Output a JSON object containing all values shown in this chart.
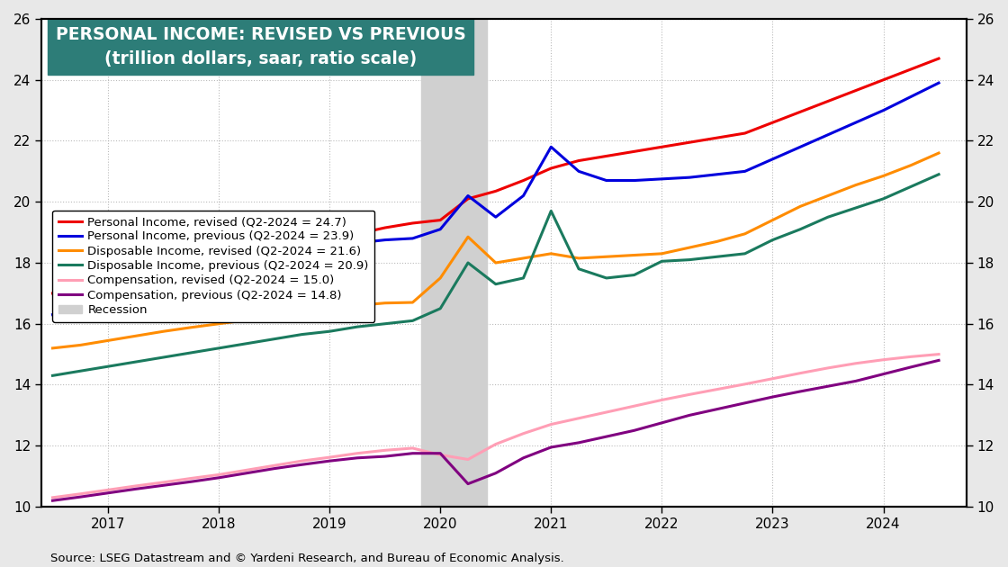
{
  "title_line1": "PERSONAL INCOME: REVISED VS PREVIOUS",
  "title_line2": "(trillion dollars, saar, ratio scale)",
  "title_bg_color": "#2d7d78",
  "title_text_color": "#ffffff",
  "source_text": "Source: LSEG Datastream and © Yardeni Research, and Bureau of Economic Analysis.",
  "ylim": [
    10,
    26
  ],
  "yticks": [
    10,
    12,
    14,
    16,
    18,
    20,
    22,
    24,
    26
  ],
  "xlim": [
    2016.4,
    2024.75
  ],
  "xticks": [
    2017,
    2018,
    2019,
    2020,
    2021,
    2022,
    2023,
    2024
  ],
  "recession_start": 2019.83,
  "recession_end": 2020.42,
  "background_color": "#e8e8e8",
  "plot_bg_color": "#ffffff",
  "grid_color": "#aaaaaa",
  "series": {
    "pi_revised": {
      "label": "Personal Income, revised (Q2-2024 = 24.7)",
      "color": "#ee0000",
      "lw": 2.2,
      "x": [
        2016.5,
        2016.75,
        2017.0,
        2017.25,
        2017.5,
        2017.75,
        2018.0,
        2018.25,
        2018.5,
        2018.75,
        2019.0,
        2019.25,
        2019.5,
        2019.75,
        2020.0,
        2020.25,
        2020.5,
        2020.75,
        2021.0,
        2021.25,
        2021.5,
        2021.75,
        2022.0,
        2022.25,
        2022.5,
        2022.75,
        2023.0,
        2023.25,
        2023.5,
        2023.75,
        2024.0,
        2024.25,
        2024.5
      ],
      "y": [
        17.0,
        17.15,
        17.3,
        17.5,
        17.65,
        17.8,
        17.95,
        18.15,
        18.35,
        18.55,
        18.75,
        18.95,
        19.15,
        19.3,
        19.4,
        20.1,
        20.35,
        20.7,
        21.1,
        21.35,
        21.5,
        21.65,
        21.8,
        21.95,
        22.1,
        22.25,
        22.6,
        22.95,
        23.3,
        23.65,
        24.0,
        24.35,
        24.7
      ]
    },
    "pi_previous": {
      "label": "Personal Income, previous (Q2-2024 = 23.9)",
      "color": "#0000dd",
      "lw": 2.2,
      "x": [
        2016.5,
        2016.75,
        2017.0,
        2017.25,
        2017.5,
        2017.75,
        2018.0,
        2018.25,
        2018.5,
        2018.75,
        2019.0,
        2019.25,
        2019.5,
        2019.75,
        2020.0,
        2020.25,
        2020.5,
        2020.75,
        2021.0,
        2021.25,
        2021.5,
        2021.75,
        2022.0,
        2022.25,
        2022.5,
        2022.75,
        2023.0,
        2023.25,
        2023.5,
        2023.75,
        2024.0,
        2024.25,
        2024.5
      ],
      "y": [
        16.3,
        16.5,
        16.7,
        16.9,
        17.1,
        17.35,
        17.6,
        17.85,
        18.1,
        18.3,
        18.5,
        18.65,
        18.75,
        18.8,
        19.1,
        20.2,
        19.5,
        20.2,
        21.8,
        21.0,
        20.7,
        20.7,
        20.75,
        20.8,
        20.9,
        21.0,
        21.4,
        21.8,
        22.2,
        22.6,
        23.0,
        23.45,
        23.9
      ]
    },
    "di_revised": {
      "label": "Disposable Income, revised (Q2-2024 = 21.6)",
      "color": "#ff8c00",
      "lw": 2.2,
      "x": [
        2016.5,
        2016.75,
        2017.0,
        2017.25,
        2017.5,
        2017.75,
        2018.0,
        2018.25,
        2018.5,
        2018.75,
        2019.0,
        2019.25,
        2019.5,
        2019.75,
        2020.0,
        2020.25,
        2020.5,
        2020.75,
        2021.0,
        2021.25,
        2021.5,
        2021.75,
        2022.0,
        2022.25,
        2022.5,
        2022.75,
        2023.0,
        2023.25,
        2023.5,
        2023.75,
        2024.0,
        2024.25,
        2024.5
      ],
      "y": [
        15.2,
        15.3,
        15.45,
        15.6,
        15.75,
        15.88,
        16.0,
        16.12,
        16.25,
        16.38,
        16.5,
        16.6,
        16.68,
        16.7,
        17.5,
        18.85,
        18.0,
        18.15,
        18.3,
        18.15,
        18.2,
        18.25,
        18.3,
        18.5,
        18.7,
        18.95,
        19.4,
        19.85,
        20.2,
        20.55,
        20.85,
        21.2,
        21.6
      ]
    },
    "di_previous": {
      "label": "Disposable Income, previous (Q2-2024 = 20.9)",
      "color": "#1a7a5e",
      "lw": 2.2,
      "x": [
        2016.5,
        2016.75,
        2017.0,
        2017.25,
        2017.5,
        2017.75,
        2018.0,
        2018.25,
        2018.5,
        2018.75,
        2019.0,
        2019.25,
        2019.5,
        2019.75,
        2020.0,
        2020.25,
        2020.5,
        2020.75,
        2021.0,
        2021.25,
        2021.5,
        2021.75,
        2022.0,
        2022.25,
        2022.5,
        2022.75,
        2023.0,
        2023.25,
        2023.5,
        2023.75,
        2024.0,
        2024.25,
        2024.5
      ],
      "y": [
        14.3,
        14.45,
        14.6,
        14.75,
        14.9,
        15.05,
        15.2,
        15.35,
        15.5,
        15.65,
        15.75,
        15.9,
        16.0,
        16.1,
        16.5,
        18.0,
        17.3,
        17.5,
        19.7,
        17.8,
        17.5,
        17.6,
        18.05,
        18.1,
        18.2,
        18.3,
        18.75,
        19.1,
        19.5,
        19.8,
        20.1,
        20.5,
        20.9
      ]
    },
    "comp_revised": {
      "label": "Compensation, revised (Q2-2024 = 15.0)",
      "color": "#ff9eb5",
      "lw": 2.2,
      "x": [
        2016.5,
        2016.75,
        2017.0,
        2017.25,
        2017.5,
        2017.75,
        2018.0,
        2018.25,
        2018.5,
        2018.75,
        2019.0,
        2019.25,
        2019.5,
        2019.75,
        2020.0,
        2020.25,
        2020.5,
        2020.75,
        2021.0,
        2021.25,
        2021.5,
        2021.75,
        2022.0,
        2022.25,
        2022.5,
        2022.75,
        2023.0,
        2023.25,
        2023.5,
        2023.75,
        2024.0,
        2024.25,
        2024.5
      ],
      "y": [
        10.3,
        10.42,
        10.55,
        10.68,
        10.8,
        10.93,
        11.05,
        11.2,
        11.35,
        11.5,
        11.62,
        11.75,
        11.85,
        11.92,
        11.7,
        11.55,
        12.05,
        12.4,
        12.7,
        12.9,
        13.1,
        13.3,
        13.5,
        13.68,
        13.85,
        14.02,
        14.2,
        14.38,
        14.55,
        14.7,
        14.82,
        14.92,
        15.0
      ]
    },
    "comp_previous": {
      "label": "Compensation, previous (Q2-2024 = 14.8)",
      "color": "#800080",
      "lw": 2.2,
      "x": [
        2016.5,
        2016.75,
        2017.0,
        2017.25,
        2017.5,
        2017.75,
        2018.0,
        2018.25,
        2018.5,
        2018.75,
        2019.0,
        2019.25,
        2019.5,
        2019.75,
        2020.0,
        2020.25,
        2020.5,
        2020.75,
        2021.0,
        2021.25,
        2021.5,
        2021.75,
        2022.0,
        2022.25,
        2022.5,
        2022.75,
        2023.0,
        2023.25,
        2023.5,
        2023.75,
        2024.0,
        2024.25,
        2024.5
      ],
      "y": [
        10.2,
        10.32,
        10.45,
        10.58,
        10.7,
        10.82,
        10.95,
        11.1,
        11.25,
        11.38,
        11.5,
        11.6,
        11.65,
        11.75,
        11.75,
        10.75,
        11.1,
        11.6,
        11.95,
        12.1,
        12.3,
        12.5,
        12.75,
        13.0,
        13.2,
        13.4,
        13.6,
        13.78,
        13.95,
        14.12,
        14.35,
        14.58,
        14.8
      ]
    }
  }
}
